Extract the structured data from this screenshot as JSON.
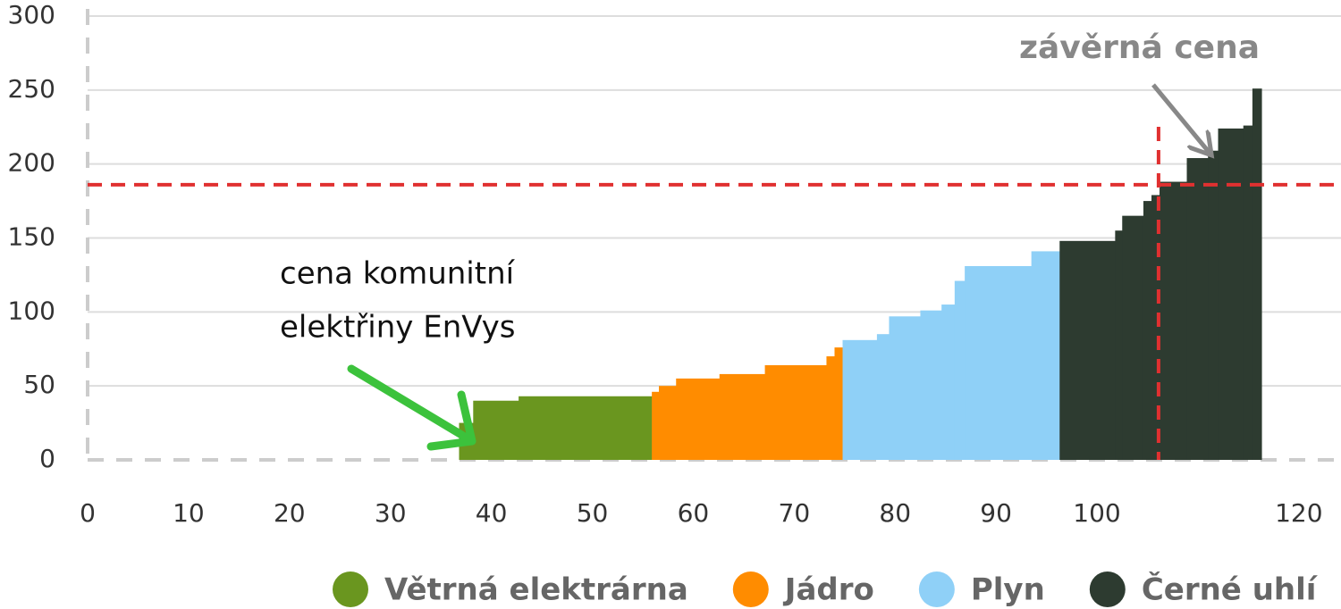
{
  "chart_data": {
    "type": "histogram",
    "xlim": [
      0,
      124
    ],
    "xticks": [
      0,
      10,
      20,
      30,
      40,
      50,
      60,
      70,
      80,
      90,
      100,
      120
    ],
    "ylim": [
      0,
      300
    ],
    "yticks": [
      0,
      50,
      100,
      150,
      200,
      250,
      300
    ],
    "grid": true,
    "series": [
      {
        "name": "Větrná elektrárna",
        "color": "#6a961f",
        "bins": [
          36.8,
          38.2,
          42.7,
          55.9
        ],
        "values": [
          25,
          40,
          43
        ]
      },
      {
        "name": "Jádro",
        "color": "#ff8c00",
        "bins": [
          55.9,
          56.6,
          58.3,
          62.6,
          67.1,
          73.2,
          74.0,
          74.8
        ],
        "values": [
          46,
          50,
          55,
          58,
          64,
          70,
          76
        ]
      },
      {
        "name": "Plyn",
        "color": "#8fd0f7",
        "bins": [
          74.8,
          78.2,
          79.4,
          82.5,
          84.6,
          85.9,
          86.9,
          93.5,
          96.3
        ],
        "values": [
          81,
          85,
          97,
          101,
          105,
          121,
          131,
          141
        ]
      },
      {
        "name": "Černé uhlí",
        "color": "#2d3b30",
        "bins": [
          96.3,
          101.8,
          102.5,
          104.6,
          105.4,
          106.2,
          108.9,
          111.0,
          112.0,
          114.5,
          115.4,
          116.3
        ],
        "values": [
          148,
          155,
          165,
          175,
          179,
          188,
          204,
          209,
          224,
          226,
          251
        ]
      }
    ],
    "clearing_price": {
      "label": "závěrná cena",
      "x": 106.1,
      "y": 186,
      "color": "#e03030"
    },
    "annotation": {
      "lines": [
        "cena komunitní",
        "elektřiny EnVys"
      ],
      "color": "#3cc23c"
    }
  }
}
